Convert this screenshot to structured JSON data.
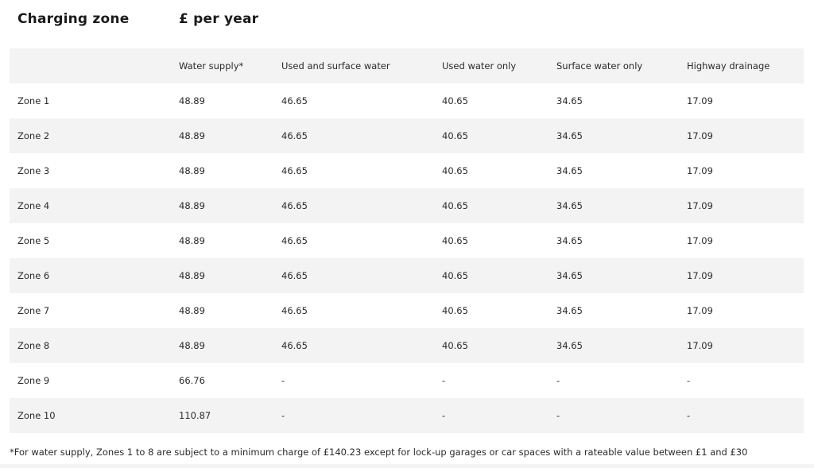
{
  "headings": {
    "zone": "Charging zone",
    "price": "£ per year"
  },
  "table": {
    "header": [
      "",
      "Water supply*",
      "Used and surface water",
      "Used water only",
      "Surface water only",
      "Highway drainage"
    ],
    "rows": [
      [
        "Zone 1",
        "48.89",
        "46.65",
        "40.65",
        "34.65",
        "17.09"
      ],
      [
        "Zone 2",
        "48.89",
        "46.65",
        "40.65",
        "34.65",
        "17.09"
      ],
      [
        "Zone 3",
        "48.89",
        "46.65",
        "40.65",
        "34.65",
        "17.09"
      ],
      [
        "Zone 4",
        "48.89",
        "46.65",
        "40.65",
        "34.65",
        "17.09"
      ],
      [
        "Zone 5",
        "48.89",
        "46.65",
        "40.65",
        "34.65",
        "17.09"
      ],
      [
        "Zone 6",
        "48.89",
        "46.65",
        "40.65",
        "34.65",
        "17.09"
      ],
      [
        "Zone 7",
        "48.89",
        "46.65",
        "40.65",
        "34.65",
        "17.09"
      ],
      [
        "Zone 8",
        "48.89",
        "46.65",
        "40.65",
        "34.65",
        "17.09"
      ],
      [
        "Zone 9",
        "66.76",
        "-",
        "-",
        "-",
        "-"
      ],
      [
        "Zone 10",
        "110.87",
        "-",
        "-",
        "-",
        "-"
      ]
    ]
  },
  "footnote": "*For water supply, Zones 1 to 8 are subject to a minimum charge of £140.23 except for lock-up garages or car spaces with a rateable value between £1 and £30",
  "colors": {
    "stripe": "#f3f3f3",
    "text": "#2a2a2a"
  }
}
